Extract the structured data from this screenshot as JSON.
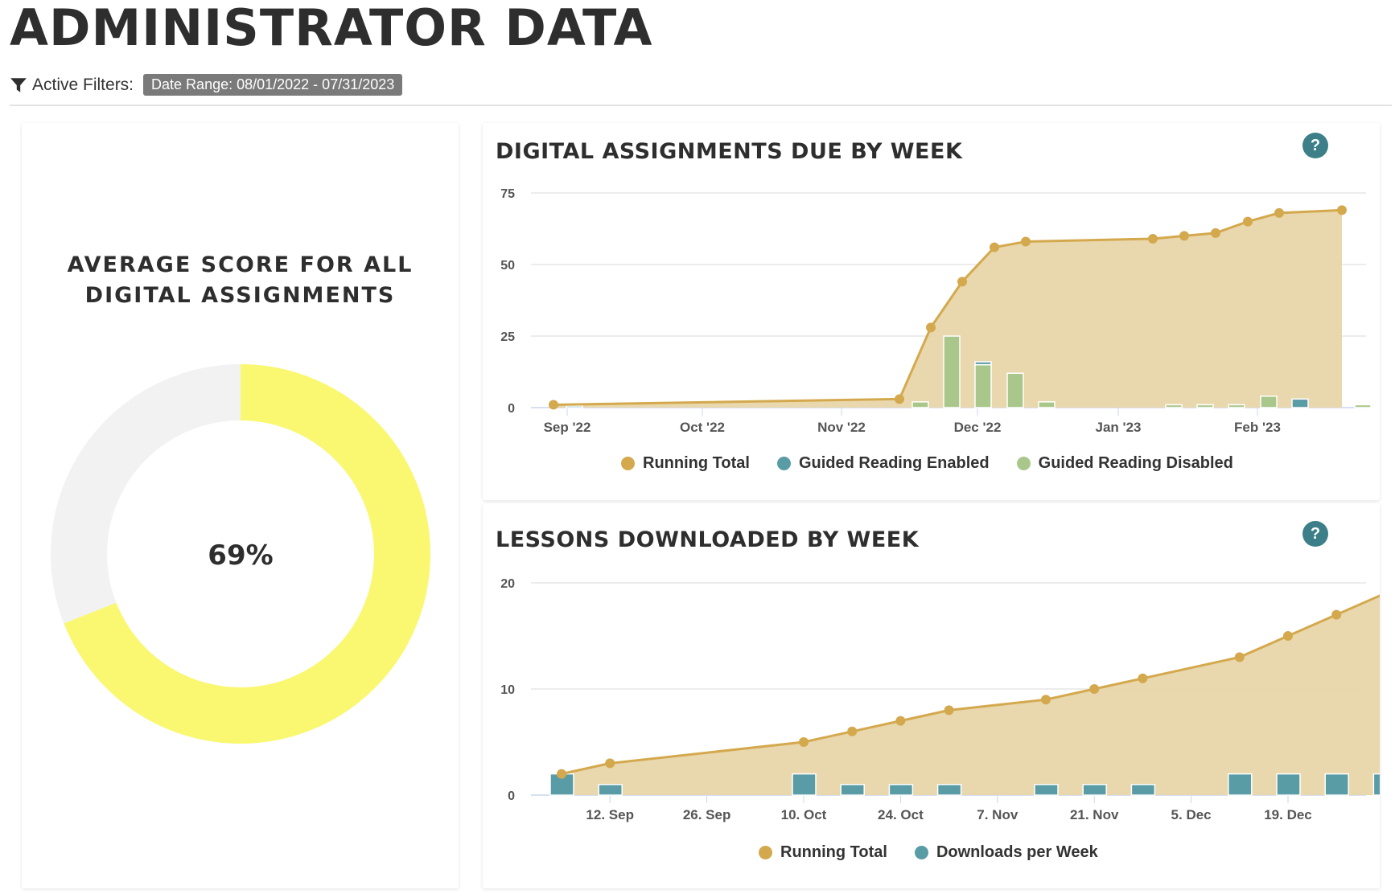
{
  "page": {
    "title": "ADMINISTRATOR DATA",
    "filters_label": "Active Filters:",
    "filter_chip": "Date Range:  08/01/2022 - 07/31/2023",
    "filter_icon": "funnel-icon"
  },
  "colors": {
    "running_total": "#d4a94e",
    "running_total_fill": "#e8d5a9",
    "guided_enabled": "#5a9ca6",
    "guided_disabled": "#a9c78a",
    "downloads": "#5a9ca6",
    "donut_fill": "#faf870",
    "donut_track": "#f2f2f2",
    "help": "#3c7f88"
  },
  "donut": {
    "title_line1": "AVERAGE SCORE FOR ALL",
    "title_line2": "DIGITAL ASSIGNMENTS",
    "value_label": "69%",
    "value": 69
  },
  "assignments_chart": {
    "title": "DIGITAL ASSIGNMENTS DUE BY WEEK",
    "help_label": "?",
    "legend": [
      "Running Total",
      "Guided Reading Enabled",
      "Guided Reading Disabled"
    ]
  },
  "lessons_chart": {
    "title": "LESSONS DOWNLOADED BY WEEK",
    "help_label": "?",
    "legend": [
      "Running Total",
      "Downloads per Week"
    ]
  },
  "chart_data": [
    {
      "type": "pie",
      "title": "AVERAGE SCORE FOR ALL DIGITAL ASSIGNMENTS",
      "categories": [
        "Average Score",
        "Remaining"
      ],
      "values": [
        69,
        31
      ],
      "center_label": "69%"
    },
    {
      "type": "bar",
      "title": "DIGITAL ASSIGNMENTS DUE BY WEEK",
      "xlabel": "",
      "ylabel": "",
      "ylim": [
        0,
        75
      ],
      "yticks": [
        0,
        25,
        50,
        75
      ],
      "xticks": [
        "Sep '22",
        "Oct '22",
        "Nov '22",
        "Dec '22",
        "Jan '23",
        "Feb '23"
      ],
      "grid": true,
      "legend_position": "bottom",
      "x": [
        "2022-08-29",
        "2022-11-14",
        "2022-11-21",
        "2022-11-28",
        "2022-12-05",
        "2022-12-12",
        "2023-01-09",
        "2023-01-16",
        "2023-01-23",
        "2023-01-30",
        "2023-02-06",
        "2023-02-20"
      ],
      "series": [
        {
          "name": "Running Total",
          "kind": "area-line",
          "values": [
            1,
            3,
            28,
            44,
            56,
            58,
            59,
            60,
            61,
            65,
            68,
            69
          ]
        },
        {
          "name": "Guided Reading Enabled",
          "kind": "stacked-bar",
          "values": [
            0.5,
            0,
            0,
            1,
            0,
            0,
            0,
            0,
            0,
            0,
            3,
            0
          ]
        },
        {
          "name": "Guided Reading Disabled",
          "kind": "stacked-bar",
          "values": [
            0,
            2,
            25,
            15,
            12,
            2,
            1,
            1,
            1,
            4,
            0,
            1
          ]
        }
      ]
    },
    {
      "type": "bar",
      "title": "LESSONS DOWNLOADED BY WEEK",
      "xlabel": "",
      "ylabel": "",
      "ylim": [
        0,
        20
      ],
      "yticks": [
        0,
        10,
        20
      ],
      "xticks": [
        "12. Sep",
        "26. Sep",
        "10. Oct",
        "24. Oct",
        "7. Nov",
        "21. Nov",
        "5. Dec",
        "19. Dec"
      ],
      "grid": true,
      "legend_position": "bottom",
      "x": [
        "2022-08-29",
        "2022-09-05",
        "2022-09-12",
        "2022-09-19",
        "2022-09-26",
        "2022-10-03",
        "2022-10-10",
        "2022-10-17",
        "2022-10-24",
        "2022-10-31",
        "2022-11-07",
        "2022-11-14",
        "2022-11-21",
        "2022-11-28",
        "2022-12-05",
        "2022-12-12",
        "2022-12-19",
        "2022-12-26"
      ],
      "series": [
        {
          "name": "Running Total",
          "kind": "area-line",
          "values": [
            2,
            3,
            null,
            null,
            null,
            5,
            6,
            7,
            8,
            null,
            9,
            10,
            11,
            null,
            13,
            15,
            17,
            19
          ]
        },
        {
          "name": "Downloads per Week",
          "kind": "bar",
          "values": [
            2,
            1,
            0,
            0,
            0,
            2,
            1,
            1,
            1,
            0,
            1,
            1,
            1,
            0,
            2,
            2,
            2,
            2
          ]
        }
      ]
    }
  ]
}
